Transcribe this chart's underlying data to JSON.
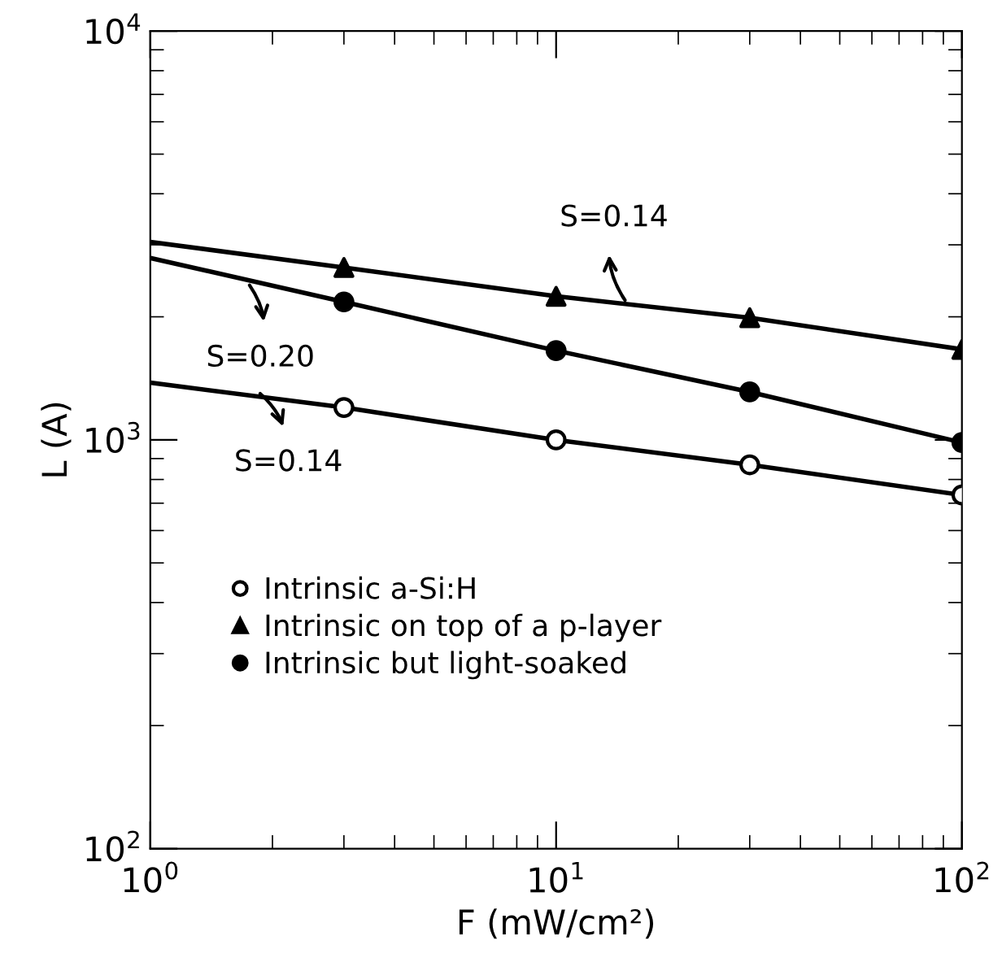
{
  "chart_data": {
    "type": "scatter",
    "xlabel": "F (mW/cm²)",
    "ylabel": "L (A)",
    "log": "xy",
    "xlim": [
      1,
      100
    ],
    "ylim": [
      100,
      10000
    ],
    "xticks": [
      {
        "value": 1,
        "label": "10$^{0}$"
      },
      {
        "value": 10,
        "label": "10$^{1}$"
      },
      {
        "value": 100,
        "label": "10$^{2}$"
      }
    ],
    "yticks": [
      {
        "value": 100,
        "label": "10$^{2}$"
      },
      {
        "value": 1000,
        "label": "10$^{3}$"
      },
      {
        "value": 10000,
        "label": "10$^{4}$"
      }
    ],
    "grid": false,
    "legend": "left",
    "series": [
      {
        "name": "Intrinsic a-Si:H",
        "marker": "circle",
        "color": "#ffffff",
        "x": [
          3,
          10,
          30,
          100
        ],
        "values": [
          1200,
          1000,
          869,
          733
        ]
      },
      {
        "name": "Intrinsic on top of a p-layer",
        "marker": "triangle",
        "color": "#000000",
        "x": [
          3,
          10,
          30,
          100
        ],
        "values": [
          2640,
          2245,
          1990,
          1665
        ]
      },
      {
        "name": "Intrinsic but light-soaked",
        "marker": "circle",
        "color": "#000000",
        "x": [
          3,
          10,
          30,
          100
        ],
        "values": [
          2175,
          1653,
          1310,
          985
        ]
      },
      {
        "type": "line",
        "color": "#000000",
        "line_style": "solid",
        "x": [
          1,
          3,
          10,
          30,
          100
        ],
        "values": [
          1380,
          1200,
          1000,
          869,
          733
        ]
      },
      {
        "type": "line",
        "color": "#000000",
        "line_style": "solid",
        "x": [
          1,
          3,
          10,
          30,
          100
        ],
        "values": [
          3050,
          2640,
          2245,
          1990,
          1665
        ]
      },
      {
        "type": "line",
        "color": "#000000",
        "line_style": "solid",
        "x": [
          1,
          3,
          10,
          30,
          100
        ],
        "values": [
          2785,
          2175,
          1653,
          1310,
          985
        ]
      }
    ],
    "annotations": [
      {
        "text": "S=0.14",
        "x": 15,
        "y": 2150
      },
      {
        "text": "S=0.20",
        "x": 1.73,
        "y": 2440
      },
      {
        "text": "S=0.14",
        "x": 1.83,
        "y": 1320
      }
    ]
  }
}
